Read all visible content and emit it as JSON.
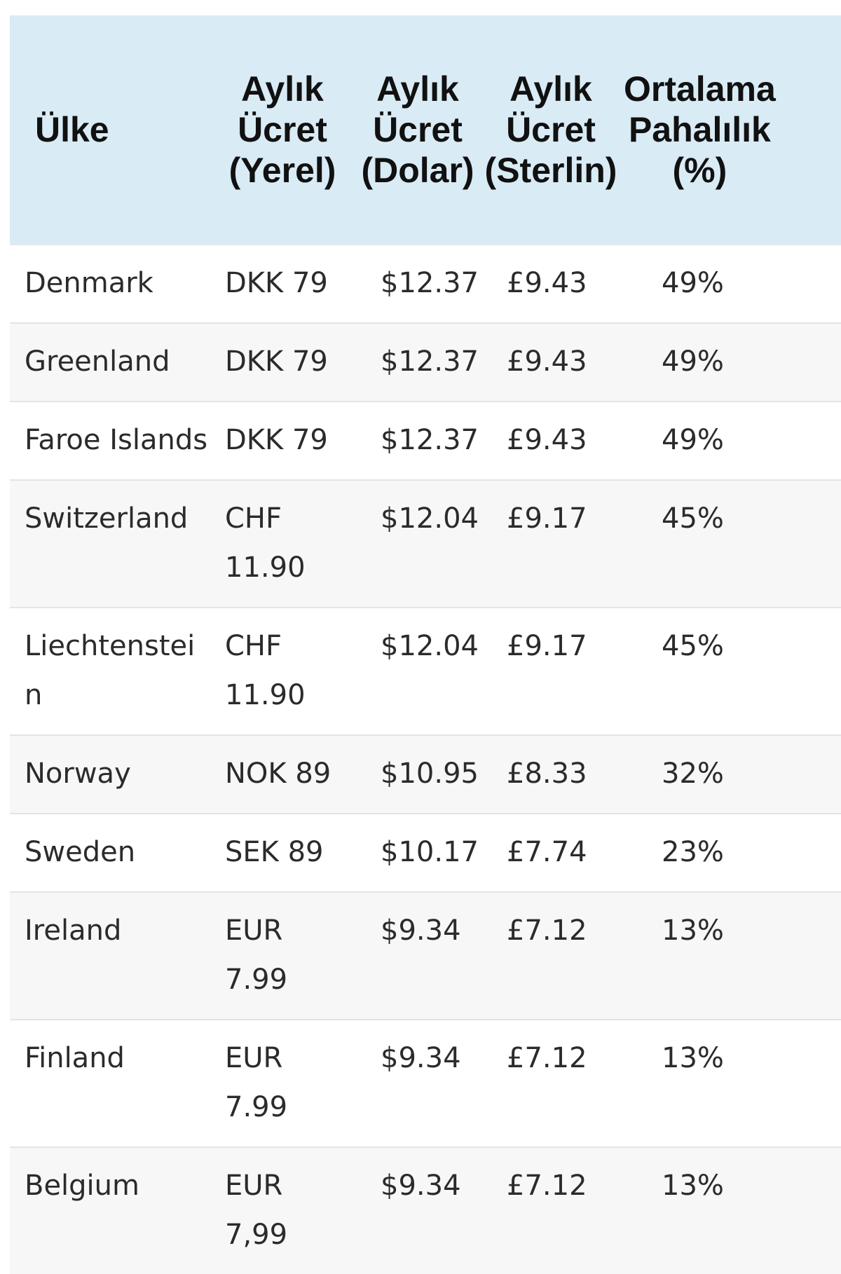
{
  "table": {
    "headers": [
      "Ülke",
      "Aylık\nÜcret\n(Yerel)",
      "Aylık\nÜcret\n(Dolar)",
      "Aylık\nÜcret\n(Sterlin)",
      "Ortalama\nPahalılık\n(%)"
    ],
    "rows": [
      [
        "Denmark",
        "DKK 79",
        "$12.37",
        "£9.43",
        "49%"
      ],
      [
        "Greenland",
        "DKK 79",
        "$12.37",
        "£9.43",
        "49%"
      ],
      [
        "Faroe Islands",
        "DKK 79",
        "$12.37",
        "£9.43",
        "49%"
      ],
      [
        "Switzerland",
        "CHF 11.90",
        "$12.04",
        "£9.17",
        "45%"
      ],
      [
        "Liechtenstein",
        "CHF 11.90",
        "$12.04",
        "£9.17",
        "45%"
      ],
      [
        "Norway",
        "NOK 89",
        "$10.95",
        "£8.33",
        "32%"
      ],
      [
        "Sweden",
        "SEK 89",
        "$10.17",
        "£7.74",
        "23%"
      ],
      [
        "Ireland",
        "EUR 7.99",
        "$9.34",
        "£7.12",
        "13%"
      ],
      [
        "Finland",
        "EUR 7.99",
        "$9.34",
        "£7.12",
        "13%"
      ],
      [
        "Belgium",
        "EUR 7,99",
        "$9.34",
        "£7.12",
        "13%"
      ]
    ]
  },
  "colors": {
    "header_background": "#d9ebf5",
    "row_stripe": "#f7f7f7",
    "row_border": "#e4e4e4"
  }
}
